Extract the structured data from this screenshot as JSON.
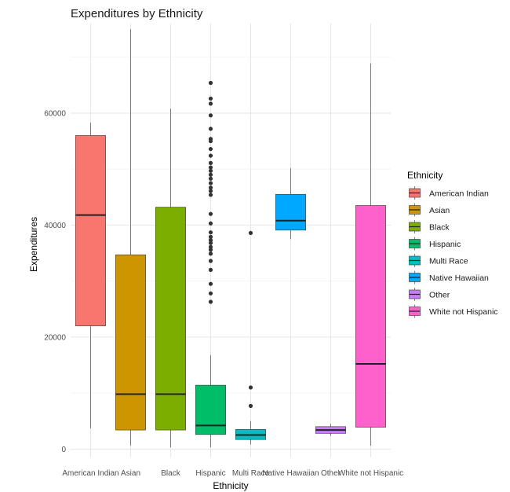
{
  "chart_data": {
    "type": "box",
    "title": "Expenditures by Ethnicity",
    "xlabel": "Ethnicity",
    "ylabel": "Expenditures",
    "ylim": [
      -1500,
      76000
    ],
    "yticks": [
      0,
      20000,
      40000,
      60000
    ],
    "ytick_labels": [
      "0",
      "20000",
      "40000",
      "60000"
    ],
    "grid": true,
    "legend_title": "Ethnicity",
    "legend_position": "right",
    "categories": [
      "American Indian",
      "Asian",
      "Black",
      "Hispanic",
      "Multi Race",
      "Native Hawaiian",
      "Other",
      "White not Hispanic"
    ],
    "colors": [
      "#F8766D",
      "#CD9600",
      "#7CAE00",
      "#00BE67",
      "#00BFC4",
      "#00A9FF",
      "#C77CFF",
      "#FF61CC"
    ],
    "boxes": [
      {
        "min": 3700,
        "q1": 22000,
        "median": 41800,
        "q3": 56000,
        "max": 58300,
        "outliers": []
      },
      {
        "min": 600,
        "q1": 3400,
        "median": 9800,
        "q3": 34700,
        "max": 75000,
        "outliers": []
      },
      {
        "min": 300,
        "q1": 3400,
        "median": 9800,
        "q3": 43200,
        "max": 60800,
        "outliers": []
      },
      {
        "min": 300,
        "q1": 2600,
        "median": 4200,
        "q3": 11400,
        "max": 16800,
        "outliers": [
          26300,
          27800,
          29500,
          32000,
          33600,
          34900,
          35600,
          36100,
          36800,
          37300,
          37900,
          38700,
          40300,
          42000,
          45400,
          46100,
          46700,
          47500,
          48300,
          49000,
          49700,
          50300,
          51100,
          52400,
          53600,
          55000,
          55400,
          57200,
          59600,
          61700,
          62600,
          65400
        ]
      },
      {
        "min": 800,
        "q1": 1700,
        "median": 2500,
        "q3": 3500,
        "max": 5000,
        "outliers": [
          7700,
          11000,
          38600
        ]
      },
      {
        "min": 37500,
        "q1": 39100,
        "median": 40800,
        "q3": 45500,
        "max": 50200,
        "outliers": []
      },
      {
        "min": 2300,
        "q1": 2800,
        "median": 3400,
        "q3": 4000,
        "max": 4500,
        "outliers": []
      },
      {
        "min": 600,
        "q1": 3900,
        "median": 15200,
        "q3": 43500,
        "max": 68900,
        "outliers": []
      }
    ]
  }
}
